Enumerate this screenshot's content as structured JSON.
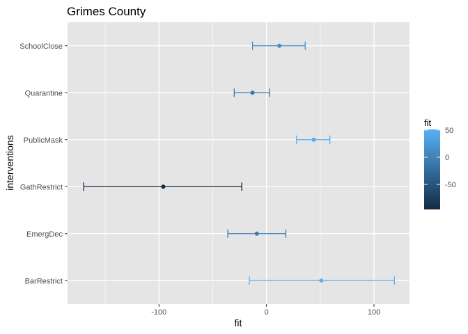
{
  "chart_data": {
    "type": "scatter",
    "title": "Grimes County",
    "xlabel": "fit",
    "ylabel": "interventions",
    "xlim": [
      -185,
      133
    ],
    "x_ticks": [
      -100,
      0,
      100
    ],
    "x_tick_labels": [
      "-100",
      "0",
      "100"
    ],
    "x_minor_ticks": [
      -150,
      -50,
      50
    ],
    "categories": [
      "SchoolClose",
      "Quarantine",
      "PublicMask",
      "GathRestrict",
      "EmergDec",
      "BarRestrict"
    ],
    "series": [
      {
        "points": [
          {
            "category": "SchoolClose",
            "fit": 12,
            "lower": -13,
            "upper": 36
          },
          {
            "category": "Quarantine",
            "fit": -13,
            "lower": -30,
            "upper": 3
          },
          {
            "category": "PublicMask",
            "fit": 44,
            "lower": 28,
            "upper": 59
          },
          {
            "category": "GathRestrict",
            "fit": -96,
            "lower": -170,
            "upper": -23
          },
          {
            "category": "EmergDec",
            "fit": -9,
            "lower": -36,
            "upper": 18
          },
          {
            "category": "BarRestrict",
            "fit": 51,
            "lower": -16,
            "upper": 119
          }
        ]
      }
    ],
    "grid": true,
    "legend": {
      "title": "fit",
      "position": "right",
      "type": "colorbar",
      "range": [
        -96,
        51
      ],
      "ticks": [
        50,
        0,
        -50
      ],
      "tick_labels": [
        "50",
        "0",
        "-50"
      ],
      "color_low": "#132b43",
      "color_high": "#56b1f7"
    },
    "colors": {
      "panel_background": "#e5e5e5",
      "gridline": "#ffffff"
    }
  }
}
